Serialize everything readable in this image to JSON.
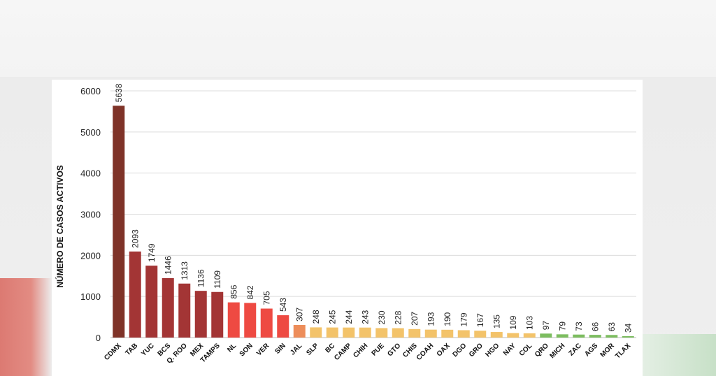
{
  "chart_data": {
    "type": "bar",
    "title": "",
    "xlabel": "",
    "ylabel": "NÚMERO DE CASOS ACTIVOS",
    "ylim": [
      0,
      6000
    ],
    "yticks": [
      0,
      1000,
      2000,
      3000,
      4000,
      5000,
      6000
    ],
    "grid": true,
    "categories": [
      "CDMX",
      "TAB",
      "YUC",
      "BCS",
      "Q. ROO",
      "MEX",
      "TAMPS",
      "NL",
      "SON",
      "VER",
      "SIN",
      "JAL",
      "SLP",
      "BC",
      "CAMP",
      "CHIH",
      "PUE",
      "GTO",
      "CHIS",
      "COAH",
      "OAX",
      "DGO",
      "GRO",
      "HGO",
      "NAY",
      "COL",
      "QRO",
      "MICH",
      "ZAC",
      "AGS",
      "MOR",
      "TLAX"
    ],
    "values": [
      5638,
      2093,
      1749,
      1446,
      1313,
      1136,
      1109,
      856,
      842,
      705,
      543,
      307,
      248,
      245,
      244,
      243,
      230,
      228,
      207,
      193,
      190,
      179,
      167,
      135,
      109,
      103,
      97,
      79,
      73,
      66,
      63,
      34
    ],
    "colors": [
      "#7f3328",
      "#a33535",
      "#a33535",
      "#a33535",
      "#a33535",
      "#a33535",
      "#a33535",
      "#ee4a42",
      "#ee4a42",
      "#ee4a42",
      "#ee4a42",
      "#ed8d5a",
      "#f3c36a",
      "#f3c36a",
      "#f3c36a",
      "#f3c36a",
      "#f3c36a",
      "#f3c36a",
      "#f3c36a",
      "#f3c36a",
      "#f3c36a",
      "#f3c36a",
      "#f3c36a",
      "#f3c36a",
      "#f3c36a",
      "#f3c36a",
      "#7cbd5f",
      "#7cbd5f",
      "#7cbd5f",
      "#7cbd5f",
      "#7cbd5f",
      "#7cbd5f"
    ]
  }
}
